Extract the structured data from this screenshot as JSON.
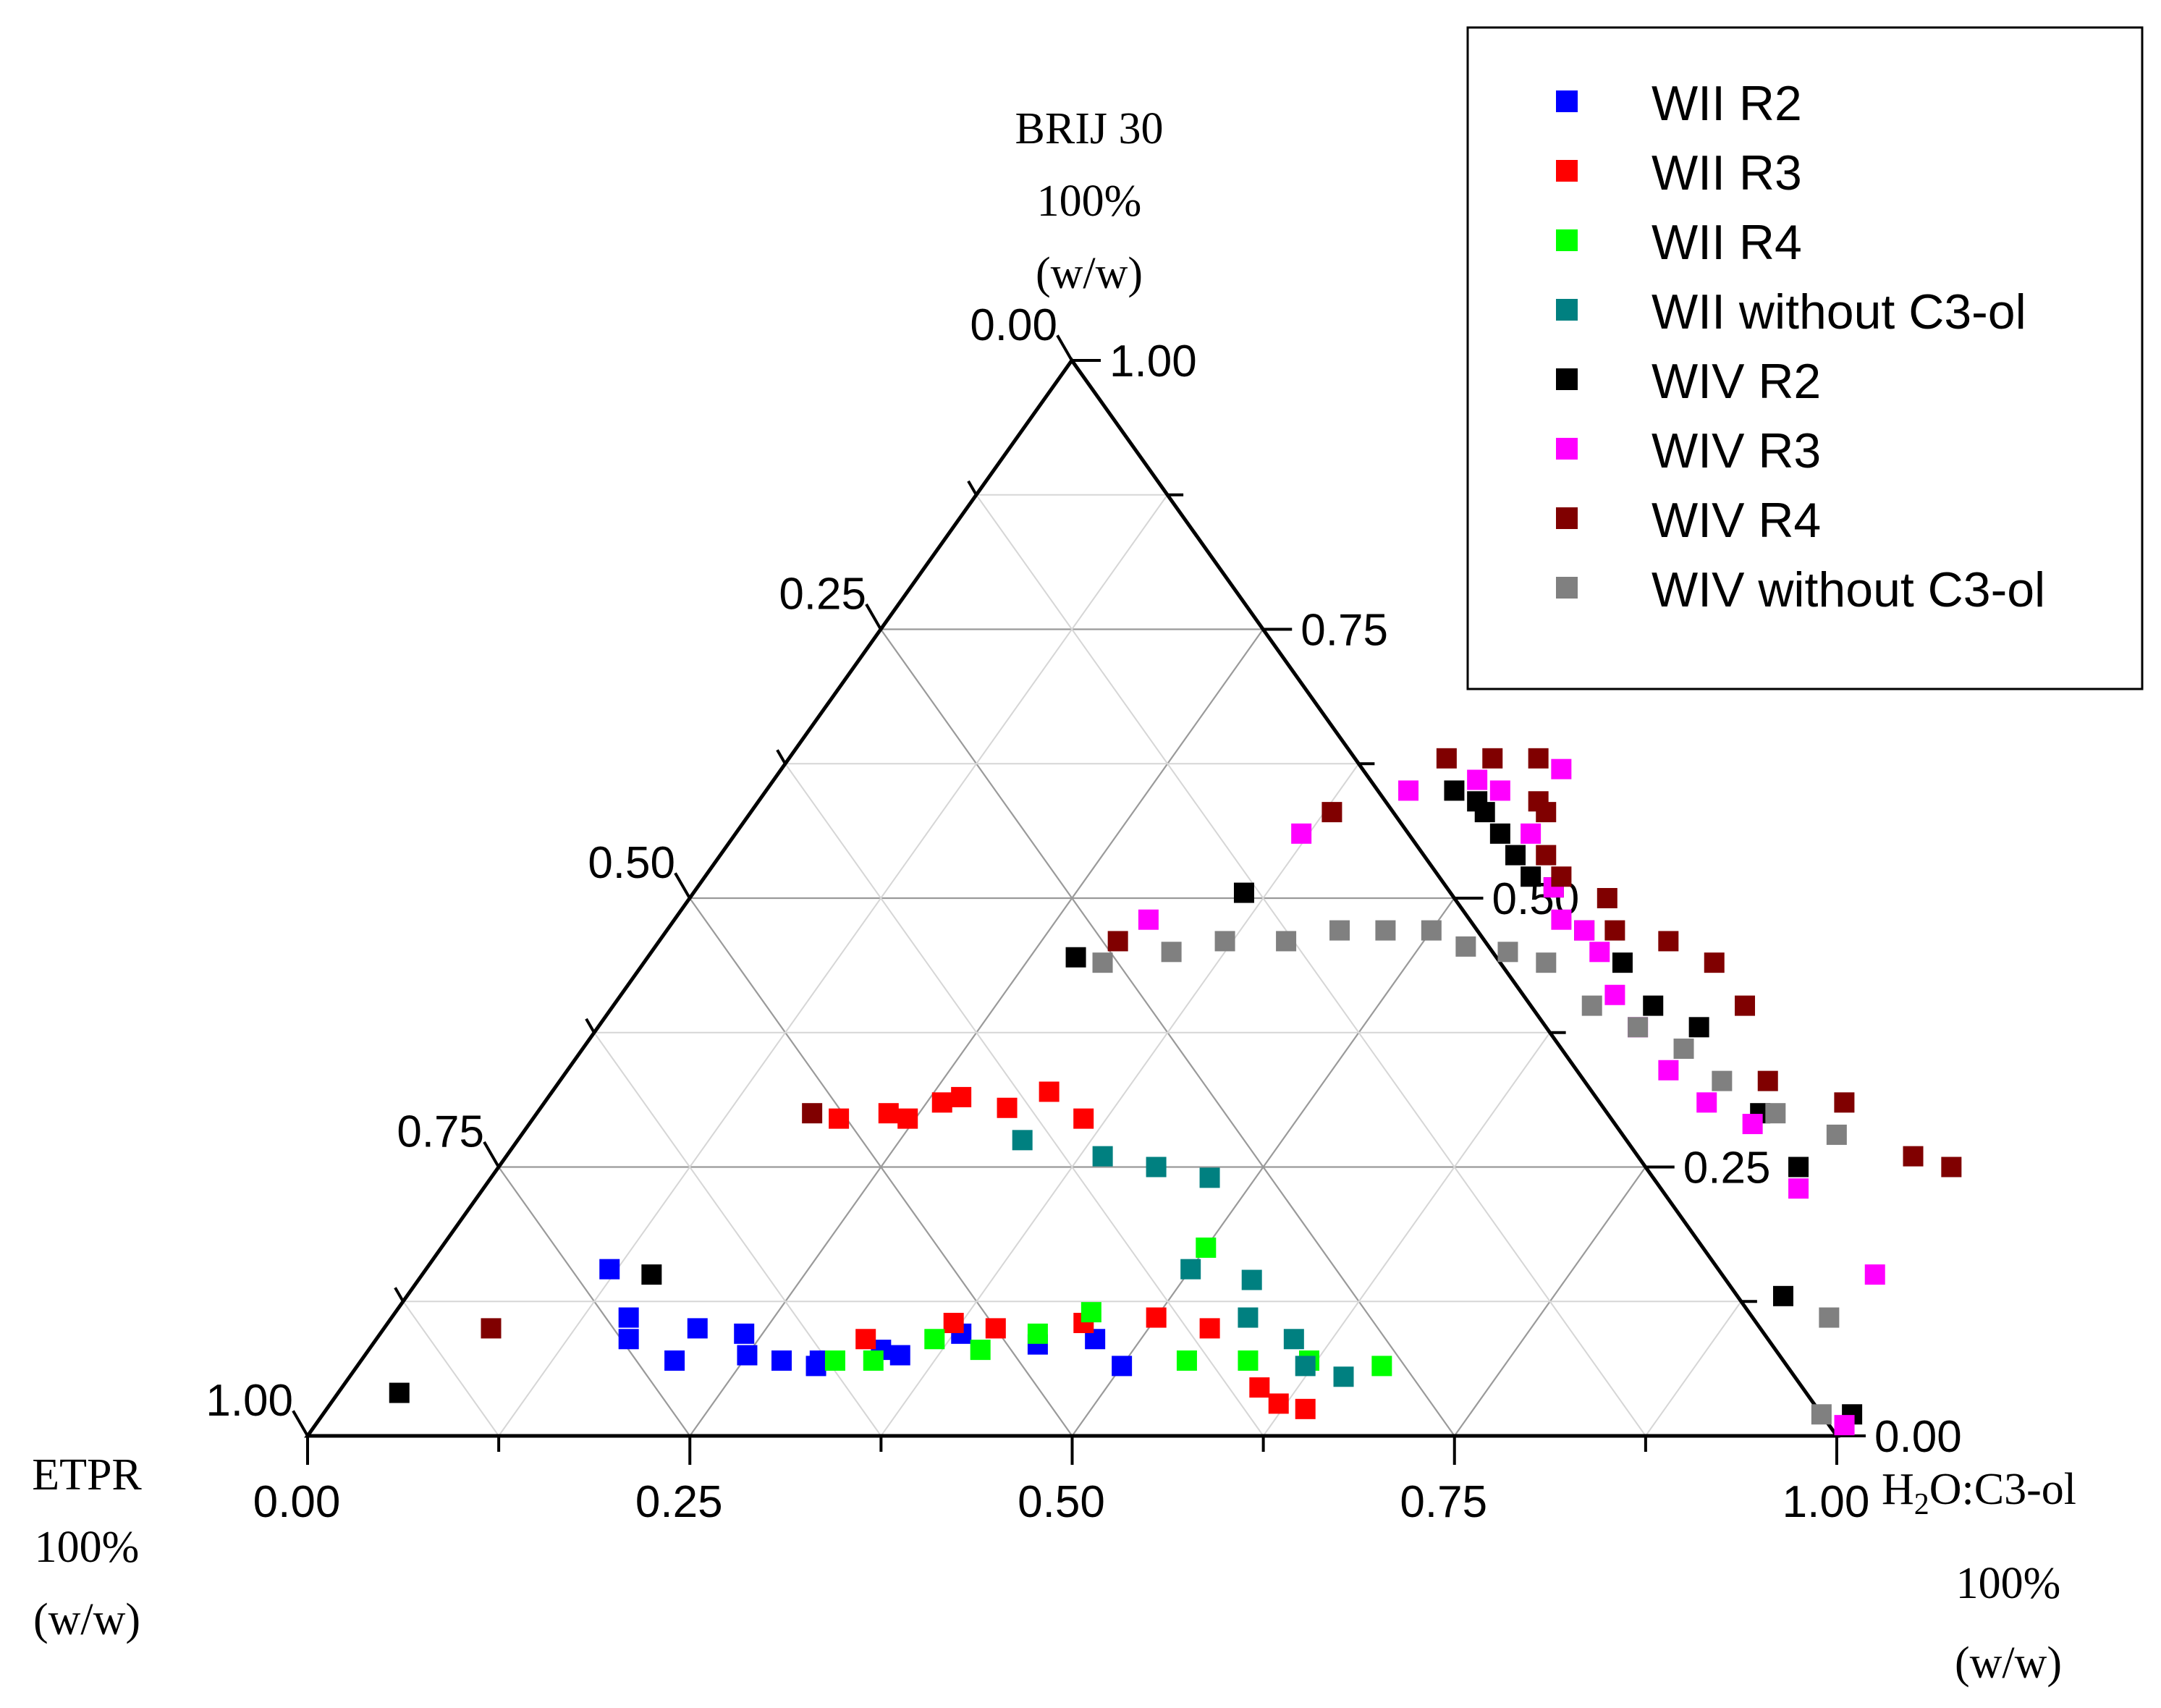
{
  "chart_data": {
    "type": "scatter",
    "subtype": "ternary",
    "axes": {
      "top": {
        "label_lines": [
          "BRIJ 30",
          "100%",
          "(w/w)"
        ]
      },
      "left": {
        "label_lines": [
          "ETPR",
          "100%",
          "(w/w)"
        ]
      },
      "right": {
        "label": "H",
        "label_sub": "2",
        "label_rest": "O:C3-ol",
        "label_lines": [
          "100%",
          "(w/w)"
        ]
      }
    },
    "ticks": {
      "left_edge": [
        "0.00",
        "0.25",
        "0.50",
        "0.75",
        "1.00"
      ],
      "right_edge": [
        "1.00",
        "0.75",
        "0.50",
        "0.25",
        "0.00"
      ],
      "bottom_edge": [
        "0.00",
        "0.25",
        "0.50",
        "0.75",
        "1.00"
      ]
    },
    "grid": true,
    "legend_position": "top-right",
    "series": [
      {
        "name": "WII R2",
        "color": "#0000ff",
        "points": [
          [
            0.12,
            0.155
          ],
          [
            0.155,
            0.11
          ],
          [
            0.165,
            0.09
          ],
          [
            0.205,
            0.1
          ],
          [
            0.238,
            0.095
          ],
          [
            0.205,
            0.07
          ],
          [
            0.25,
            0.075
          ],
          [
            0.275,
            0.07
          ],
          [
            0.3,
            0.065
          ],
          [
            0.3,
            0.07
          ],
          [
            0.335,
            0.08
          ],
          [
            0.35,
            0.075
          ],
          [
            0.38,
            0.095
          ],
          [
            0.435,
            0.085
          ],
          [
            0.47,
            0.09
          ],
          [
            0.5,
            0.065
          ]
        ]
      },
      {
        "name": "WII R3",
        "color": "#ff0000",
        "points": [
          [
            0.2,
            0.295
          ],
          [
            0.23,
            0.3
          ],
          [
            0.245,
            0.295
          ],
          [
            0.26,
            0.31
          ],
          [
            0.27,
            0.315
          ],
          [
            0.305,
            0.305
          ],
          [
            0.325,
            0.32
          ],
          [
            0.36,
            0.295
          ],
          [
            0.32,
            0.09
          ],
          [
            0.37,
            0.105
          ],
          [
            0.4,
            0.1
          ],
          [
            0.455,
            0.105
          ],
          [
            0.5,
            0.11
          ],
          [
            0.54,
            0.1
          ],
          [
            0.6,
            0.045
          ],
          [
            0.62,
            0.03
          ],
          [
            0.64,
            0.025
          ]
        ]
      },
      {
        "name": "WII R4",
        "color": "#00ff00",
        "points": [
          [
            0.31,
            0.07
          ],
          [
            0.335,
            0.07
          ],
          [
            0.365,
            0.09
          ],
          [
            0.4,
            0.08
          ],
          [
            0.43,
            0.095
          ],
          [
            0.455,
            0.115
          ],
          [
            0.5,
            0.175
          ],
          [
            0.54,
            0.07
          ],
          [
            0.58,
            0.07
          ],
          [
            0.62,
            0.07
          ],
          [
            0.67,
            0.065
          ]
        ]
      },
      {
        "name": "WII without C3-ol",
        "color": "#008080",
        "points": [
          [
            0.33,
            0.275
          ],
          [
            0.39,
            0.26
          ],
          [
            0.43,
            0.25
          ],
          [
            0.47,
            0.24
          ],
          [
            0.5,
            0.155
          ],
          [
            0.545,
            0.145
          ],
          [
            0.56,
            0.11
          ],
          [
            0.6,
            0.09
          ],
          [
            0.62,
            0.065
          ],
          [
            0.65,
            0.055
          ]
        ]
      },
      {
        "name": "WIV R2",
        "color": "#000000",
        "points": [
          [
            0.28,
            0.445
          ],
          [
            0.36,
            0.505
          ],
          [
            0.45,
            0.6
          ],
          [
            0.47,
            0.59
          ],
          [
            0.48,
            0.58
          ],
          [
            0.5,
            0.56
          ],
          [
            0.52,
            0.54
          ],
          [
            0.54,
            0.52
          ],
          [
            0.56,
            0.51
          ],
          [
            0.6,
            0.47
          ],
          [
            0.64,
            0.44
          ],
          [
            0.68,
            0.4
          ],
          [
            0.72,
            0.38
          ],
          [
            0.8,
            0.3
          ],
          [
            0.85,
            0.25
          ],
          [
            0.9,
            0.13
          ],
          [
            1.0,
            0.02
          ],
          [
            0.15,
            0.15
          ],
          [
            0.04,
            0.04
          ]
        ]
      },
      {
        "name": "WIV R3",
        "color": "#ff00ff",
        "points": [
          [
            0.31,
            0.48
          ],
          [
            0.37,
            0.56
          ],
          [
            0.42,
            0.6
          ],
          [
            0.46,
            0.61
          ],
          [
            0.48,
            0.6
          ],
          [
            0.51,
            0.62
          ],
          [
            0.52,
            0.56
          ],
          [
            0.56,
            0.51
          ],
          [
            0.58,
            0.48
          ],
          [
            0.6,
            0.47
          ],
          [
            0.62,
            0.45
          ],
          [
            0.65,
            0.41
          ],
          [
            0.68,
            0.38
          ],
          [
            0.72,
            0.34
          ],
          [
            0.76,
            0.31
          ],
          [
            0.8,
            0.29
          ],
          [
            0.86,
            0.23
          ],
          [
            0.95,
            0.15
          ],
          [
            1.0,
            0.01
          ]
        ]
      },
      {
        "name": "WIV R4",
        "color": "#800000",
        "points": [
          [
            0.3,
            0.46
          ],
          [
            0.38,
            0.58
          ],
          [
            0.43,
            0.63
          ],
          [
            0.46,
            0.63
          ],
          [
            0.49,
            0.63
          ],
          [
            0.51,
            0.59
          ],
          [
            0.52,
            0.58
          ],
          [
            0.54,
            0.54
          ],
          [
            0.56,
            0.52
          ],
          [
            0.6,
            0.5
          ],
          [
            0.62,
            0.47
          ],
          [
            0.66,
            0.46
          ],
          [
            0.7,
            0.44
          ],
          [
            0.74,
            0.4
          ],
          [
            0.79,
            0.33
          ],
          [
            0.85,
            0.31
          ],
          [
            0.92,
            0.26
          ],
          [
            0.95,
            0.25
          ],
          [
            0.18,
            0.3
          ],
          [
            0.07,
            0.1
          ]
        ]
      },
      {
        "name": "WIV without C3-ol",
        "color": "#808080",
        "points": [
          [
            0.3,
            0.44
          ],
          [
            0.34,
            0.45
          ],
          [
            0.37,
            0.46
          ],
          [
            0.41,
            0.46
          ],
          [
            0.44,
            0.47
          ],
          [
            0.47,
            0.47
          ],
          [
            0.5,
            0.47
          ],
          [
            0.53,
            0.455
          ],
          [
            0.56,
            0.45
          ],
          [
            0.59,
            0.44
          ],
          [
            0.64,
            0.4
          ],
          [
            0.68,
            0.38
          ],
          [
            0.72,
            0.36
          ],
          [
            0.76,
            0.33
          ],
          [
            0.81,
            0.3
          ],
          [
            0.86,
            0.28
          ],
          [
            0.94,
            0.11
          ],
          [
            0.98,
            0.02
          ]
        ]
      }
    ]
  }
}
